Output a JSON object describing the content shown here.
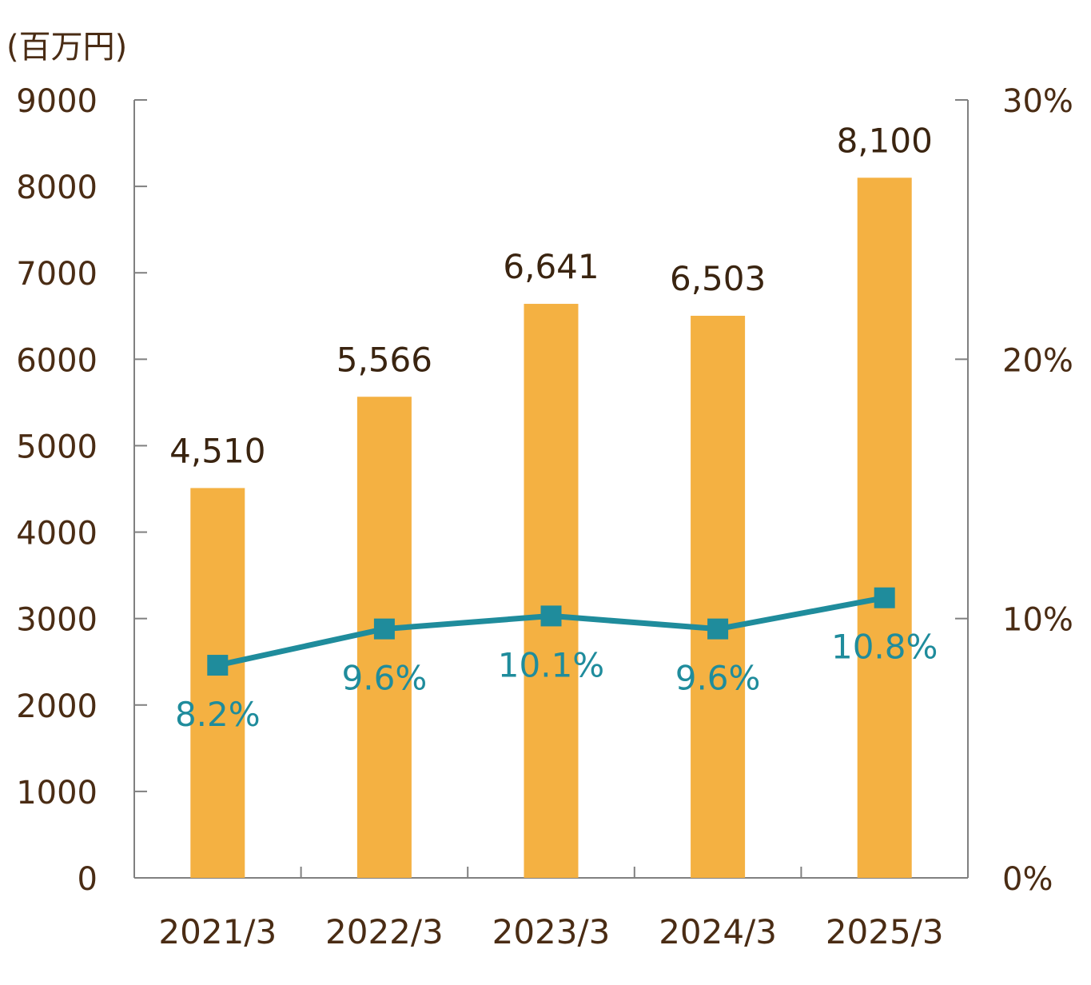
{
  "chart_data": {
    "type": "bar",
    "unit_label": "(百万円)",
    "categories": [
      "2021/3",
      "2022/3",
      "2023/3",
      "2024/3",
      "2025/3"
    ],
    "series": [
      {
        "name": "value",
        "type": "bar",
        "axis": "left",
        "color": "#f4b142",
        "values": [
          4510,
          5566,
          6641,
          6503,
          8100
        ],
        "labels": [
          "4,510",
          "5,566",
          "6,641",
          "6,503",
          "8,100"
        ]
      },
      {
        "name": "ratio",
        "type": "line",
        "axis": "right",
        "color": "#1f8c9c",
        "values": [
          8.2,
          9.6,
          10.1,
          9.6,
          10.8
        ],
        "labels": [
          "8.2%",
          "9.6%",
          "10.1%",
          "9.6%",
          "10.8%"
        ]
      }
    ],
    "y_left": {
      "range": [
        0,
        9000
      ],
      "ticks": [
        "0",
        "1000",
        "2000",
        "3000",
        "4000",
        "5000",
        "6000",
        "7000",
        "8000",
        "9000"
      ]
    },
    "y_right": {
      "range": [
        0,
        30
      ],
      "ticks": [
        "0%",
        "10%",
        "20%",
        "30%"
      ]
    },
    "grid": false,
    "legend": "none",
    "colors": {
      "axis": "#808080",
      "text": "#4a2c14"
    }
  }
}
